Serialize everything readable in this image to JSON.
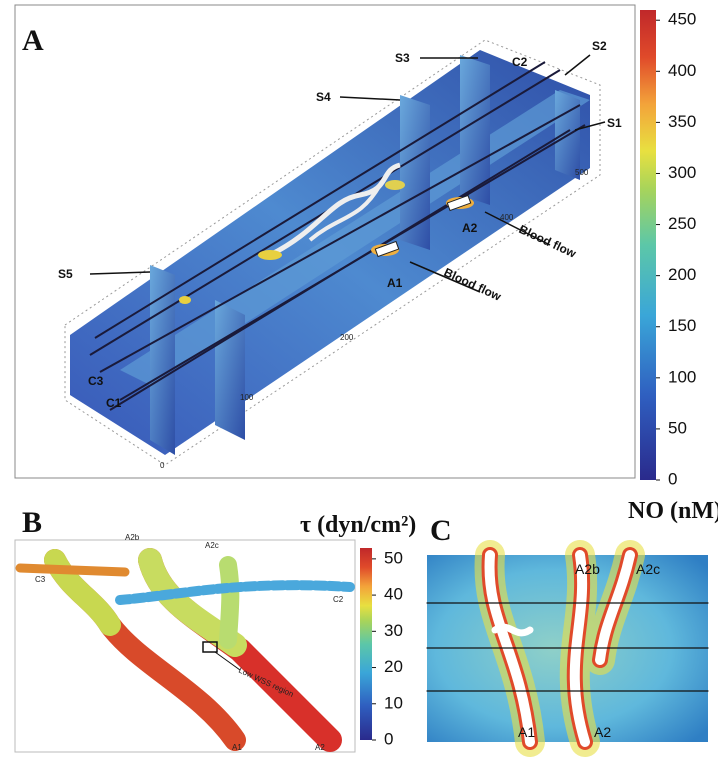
{
  "panel_a": {
    "label": "A",
    "annotations": [
      "S3",
      "C2",
      "S2",
      "S4",
      "S1",
      "S5",
      "A2",
      "Blood flow",
      "A1",
      "Blood flow",
      "C3",
      "C1"
    ],
    "colorbar": {
      "title": "NO (nM)",
      "lim": [
        0,
        460
      ],
      "ticks": [
        0,
        50,
        100,
        150,
        200,
        250,
        300,
        350,
        400,
        450
      ]
    }
  },
  "panel_b": {
    "label": "B",
    "annotations": [
      "A2b",
      "A2c",
      "C3",
      "C2",
      "Low WSS region",
      "A1",
      "A2"
    ],
    "colorbar": {
      "title": "τ (dyn/cm²)",
      "lim": [
        0,
        53
      ],
      "ticks": [
        0,
        10,
        20,
        30,
        40,
        50
      ]
    }
  },
  "panel_c": {
    "label": "C",
    "annotations": [
      "A2b",
      "A2c",
      "A1",
      "A2"
    ]
  }
}
